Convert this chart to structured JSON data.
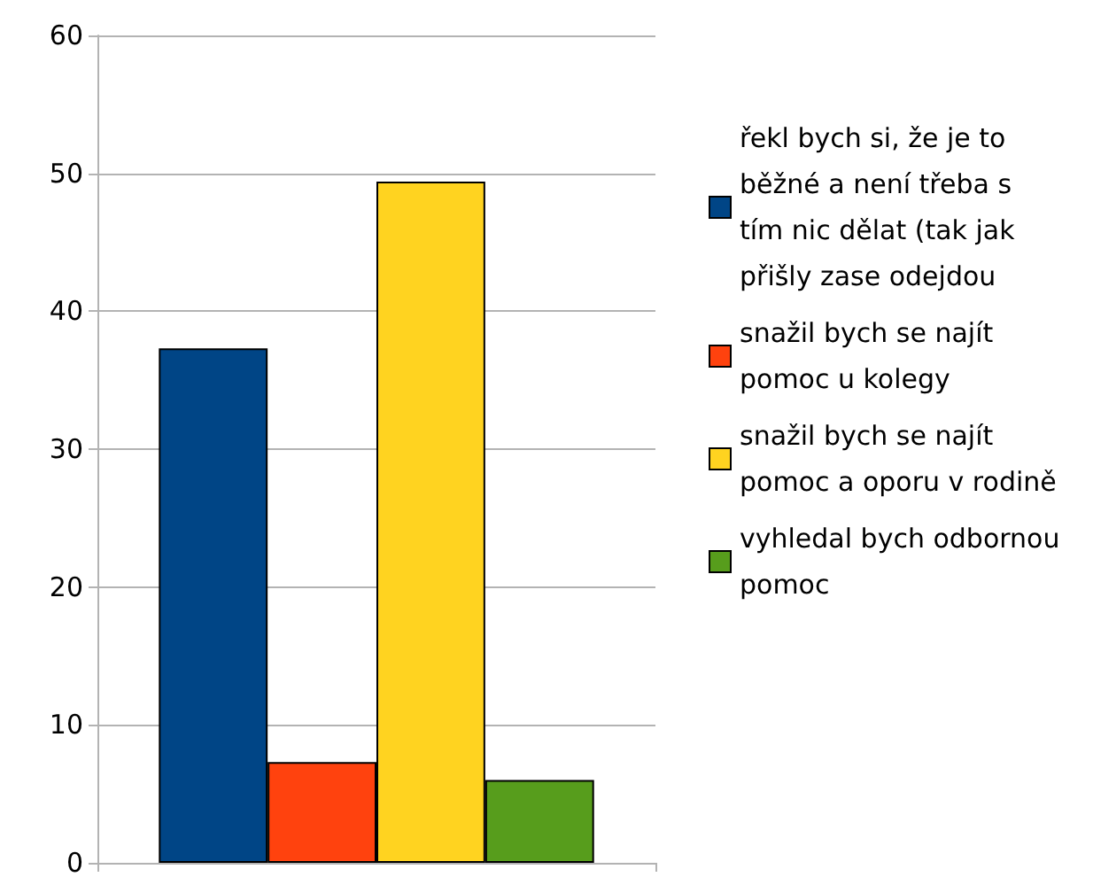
{
  "chart_data": {
    "type": "bar",
    "categories": [
      null
    ],
    "series": [
      {
        "name": "řekl bych si, že je to běžné a není třeba s tím nic dělat (tak jak přišly zase odejdou",
        "color": "#004586",
        "values": [
          37.3
        ]
      },
      {
        "name": "snažil bych se najít pomoc u kolegy",
        "color": "#ff420e",
        "values": [
          7.3
        ]
      },
      {
        "name": "snažil bych se najít pomoc a oporu v rodině",
        "color": "#ffd320",
        "values": [
          49.4
        ]
      },
      {
        "name": "vyhledal bych odbornou pomoc",
        "color": "#579d1c",
        "values": [
          6.0
        ]
      }
    ],
    "ylim": [
      0,
      60
    ],
    "yticks": [
      0,
      10,
      20,
      30,
      40,
      50,
      60
    ],
    "grid": "y",
    "legend": "right"
  }
}
